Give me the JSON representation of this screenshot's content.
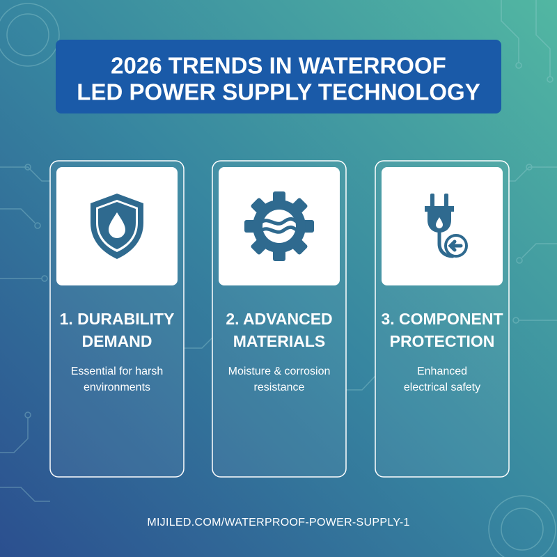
{
  "header": {
    "title_lines": [
      "2026 TRENDS IN WATERROOF",
      "LED POWER SUPPLY TECHNOLOGY"
    ]
  },
  "cards": [
    {
      "title_lines": [
        "1. DURABILITY",
        "DEMAND"
      ],
      "description_lines": [
        "Essential for harsh",
        "environments"
      ]
    },
    {
      "title_lines": [
        "2. ADVANCED",
        "MATERIALS"
      ],
      "description_lines": [
        "Moisture & corrosion",
        "resistance"
      ]
    },
    {
      "title_lines": [
        "3. COMPONENT",
        "PROTECTION"
      ],
      "description_lines": [
        "Enhanced",
        "electrical safety"
      ]
    }
  ],
  "footer": {
    "url": "MIJILED.COM/WATERPROOF-POWER-SUPPLY-1"
  }
}
